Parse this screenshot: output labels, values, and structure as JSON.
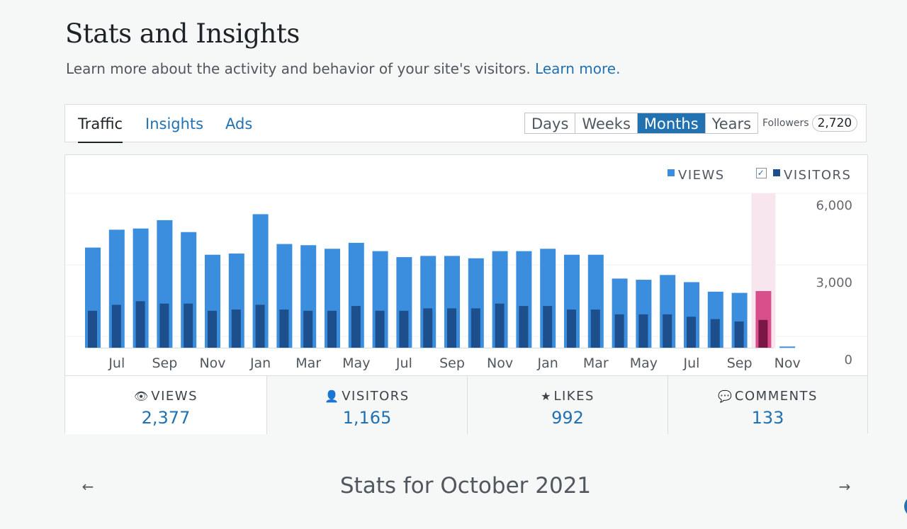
{
  "header": {
    "title": "Stats and Insights",
    "subtitle": "Learn more about the activity and behavior of your site's visitors.",
    "learn_more": "Learn more."
  },
  "nav": {
    "tabs": [
      "Traffic",
      "Insights",
      "Ads"
    ],
    "selected_tab": "Traffic",
    "periods": [
      "Days",
      "Weeks",
      "Months",
      "Years"
    ],
    "selected_period": "Months",
    "followers_label": "Followers",
    "followers_count": "2,720"
  },
  "legend": {
    "views": "VIEWS",
    "visitors": "VISITORS",
    "visitors_checked": true
  },
  "chart_data": {
    "type": "bar",
    "categories": [
      "Jun",
      "Jul",
      "Aug",
      "Sep",
      "Oct",
      "Nov",
      "Dec",
      "Jan",
      "Feb",
      "Mar",
      "Apr",
      "May",
      "Jun",
      "Jul",
      "Aug",
      "Sep",
      "Oct",
      "Nov",
      "Dec",
      "Jan",
      "Feb",
      "Mar",
      "Apr",
      "May",
      "Jun",
      "Jul",
      "Aug",
      "Sep",
      "Oct",
      "Nov"
    ],
    "x_tick_labels": [
      "Jul",
      "Sep",
      "Nov",
      "Jan",
      "Mar",
      "May",
      "Jul",
      "Sep",
      "Nov",
      "Jan",
      "Mar",
      "May",
      "Jul",
      "Sep",
      "Nov"
    ],
    "series": [
      {
        "name": "VIEWS",
        "color": "#3b8ede",
        "values": [
          4200,
          4950,
          5000,
          5350,
          4850,
          3900,
          3950,
          5600,
          4350,
          4300,
          4150,
          4400,
          4050,
          3800,
          3850,
          3850,
          3750,
          4050,
          4050,
          4150,
          3900,
          3900,
          2900,
          2850,
          3050,
          2750,
          2350,
          2300,
          2377,
          50
        ]
      },
      {
        "name": "VISITORS",
        "color": "#1d4f8c",
        "values": [
          1550,
          1800,
          1950,
          1850,
          1850,
          1550,
          1600,
          1800,
          1600,
          1550,
          1550,
          1750,
          1550,
          1550,
          1650,
          1650,
          1650,
          1850,
          1750,
          1750,
          1600,
          1600,
          1400,
          1400,
          1400,
          1300,
          1200,
          1100,
          1165,
          0
        ]
      }
    ],
    "highlight_index": 28,
    "highlight_color": "#d94f8c",
    "highlight_visitor_color": "#7a1745",
    "highlight_band_color": "#f7e6ee",
    "y_ticks": [
      "6,000",
      "3,000",
      "0"
    ],
    "ylim": [
      0,
      6000
    ],
    "grid": true,
    "legend_position": "top-right"
  },
  "summary": [
    {
      "icon": "eye-icon",
      "glyph": "👁",
      "label": "VIEWS",
      "value": "2,377"
    },
    {
      "icon": "person-icon",
      "glyph": "👤",
      "label": "VISITORS",
      "value": "1,165"
    },
    {
      "icon": "star-icon",
      "glyph": "★",
      "label": "LIKES",
      "value": "992"
    },
    {
      "icon": "comment-icon",
      "glyph": "💬",
      "label": "COMMENTS",
      "value": "133"
    }
  ],
  "period_nav": {
    "title": "Stats for October 2021",
    "prev": "←",
    "next": "→"
  }
}
